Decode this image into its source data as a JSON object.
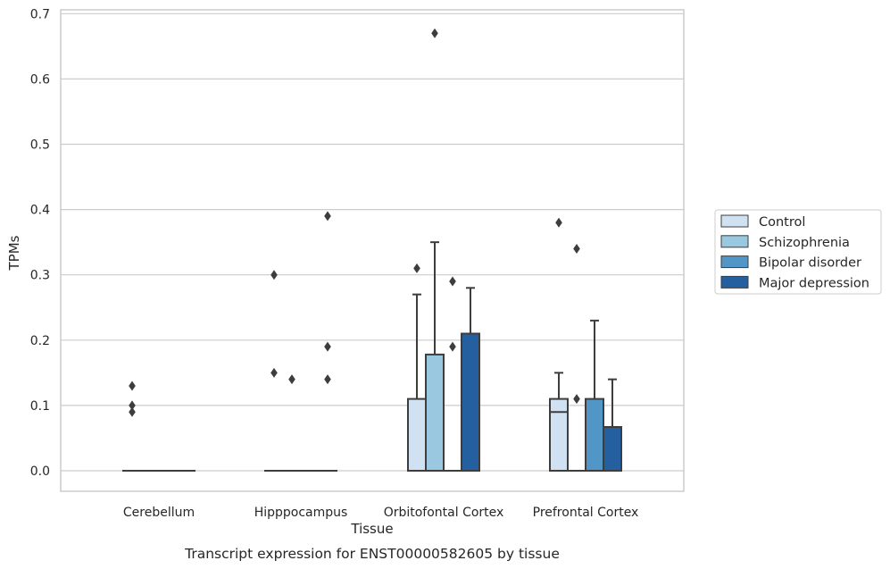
{
  "chart_data": {
    "type": "box",
    "xlabel": "Tissue",
    "ylabel": "TPMs",
    "caption": "Transcript expression for ENST00000582605 by tissue",
    "ylim": [
      -0.032,
      0.705
    ],
    "yticks": [
      "0.0",
      "0.1",
      "0.2",
      "0.3",
      "0.4",
      "0.5",
      "0.6",
      "0.7"
    ],
    "categories": [
      "Cerebellum",
      "Hipppocampus",
      "Orbitofontal Cortex",
      "Prefrontal Cortex"
    ],
    "grid": "horizontal",
    "legend_position": "right",
    "series": [
      {
        "name": "Control",
        "color": "#d0e2f2"
      },
      {
        "name": "Schizophrenia",
        "color": "#9ac8e0"
      },
      {
        "name": "Bipolar disorder",
        "color": "#5296c8"
      },
      {
        "name": "Major depression",
        "color": "#2460a0"
      }
    ],
    "boxes": [
      [
        {
          "q1": 0,
          "median": 0,
          "q3": 0,
          "whislo": 0,
          "whishi": 0,
          "fliers": [
            0.09,
            0.1,
            0.13
          ]
        },
        {
          "q1": 0,
          "median": 0,
          "q3": 0,
          "whislo": 0,
          "whishi": 0,
          "fliers": []
        },
        {
          "q1": 0,
          "median": 0,
          "q3": 0,
          "whislo": 0,
          "whishi": 0,
          "fliers": []
        },
        {
          "q1": 0,
          "median": 0,
          "q3": 0,
          "whislo": 0,
          "whishi": 0,
          "fliers": []
        }
      ],
      [
        {
          "q1": 0,
          "median": 0,
          "q3": 0,
          "whislo": 0,
          "whishi": 0,
          "fliers": [
            0.15,
            0.3
          ]
        },
        {
          "q1": 0,
          "median": 0,
          "q3": 0,
          "whislo": 0,
          "whishi": 0,
          "fliers": [
            0.14
          ]
        },
        {
          "q1": 0,
          "median": 0,
          "q3": 0,
          "whislo": 0,
          "whishi": 0,
          "fliers": []
        },
        {
          "q1": 0,
          "median": 0,
          "q3": 0,
          "whislo": 0,
          "whishi": 0,
          "fliers": [
            0.14,
            0.19,
            0.39
          ]
        }
      ],
      [
        {
          "q1": 0,
          "median": 0,
          "q3": 0.11,
          "whislo": 0,
          "whishi": 0.27,
          "fliers": [
            0.31
          ]
        },
        {
          "q1": 0,
          "median": 0,
          "q3": 0.178,
          "whislo": 0,
          "whishi": 0.35,
          "fliers": [
            0.67
          ]
        },
        {
          "q1": 0,
          "median": 0,
          "q3": 0,
          "whislo": 0,
          "whishi": 0,
          "fliers": [
            0.19,
            0.29
          ]
        },
        {
          "q1": 0,
          "median": 0,
          "q3": 0.21,
          "whislo": 0,
          "whishi": 0.28,
          "fliers": []
        }
      ],
      [
        {
          "q1": 0,
          "median": 0.09,
          "q3": 0.11,
          "whislo": 0,
          "whishi": 0.15,
          "fliers": [
            0.38
          ]
        },
        {
          "q1": 0,
          "median": 0,
          "q3": 0,
          "whislo": 0,
          "whishi": 0,
          "fliers": [
            0.11,
            0.34
          ]
        },
        {
          "q1": 0,
          "median": 0,
          "q3": 0.11,
          "whislo": 0,
          "whishi": 0.23,
          "fliers": []
        },
        {
          "q1": 0,
          "median": 0,
          "q3": 0.067,
          "whislo": 0,
          "whishi": 0.14,
          "fliers": []
        }
      ]
    ]
  }
}
